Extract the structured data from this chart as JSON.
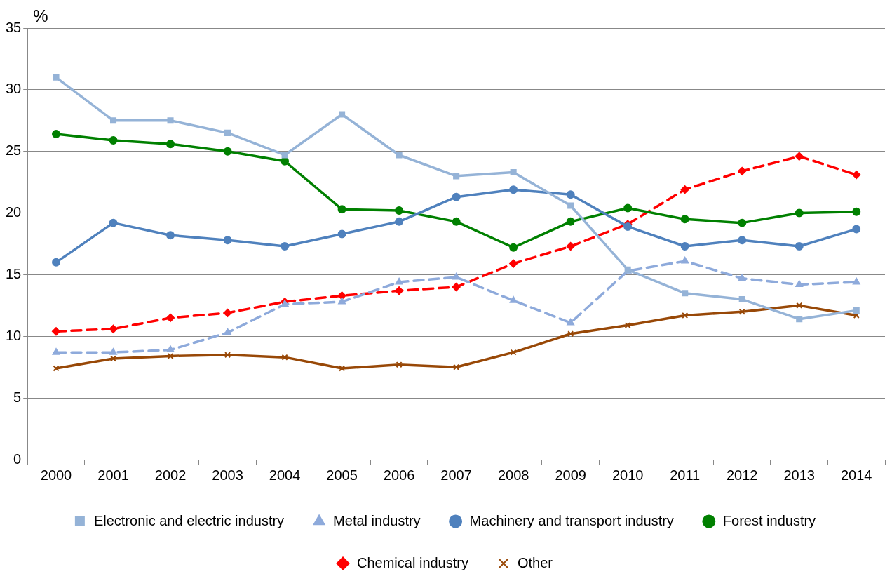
{
  "chart_data": {
    "type": "line",
    "ylabel": "%",
    "categories": [
      "2000",
      "2001",
      "2002",
      "2003",
      "2004",
      "2005",
      "2006",
      "2007",
      "2008",
      "2009",
      "2010",
      "2011",
      "2012",
      "2013",
      "2014"
    ],
    "ylim": [
      0,
      35
    ],
    "yticks": [
      0,
      5,
      10,
      15,
      20,
      25,
      30,
      35
    ],
    "grid": "y",
    "legend": "bottom",
    "series": [
      {
        "name": "Electronic and electric industry",
        "color": "#95b3d7",
        "marker": "square",
        "line_style": "solid",
        "values": [
          31,
          27.5,
          27.5,
          26.5,
          24.7,
          28,
          24.7,
          23,
          23.3,
          20.6,
          15.4,
          13.5,
          13,
          11.4,
          12.1
        ]
      },
      {
        "name": "Metal industry",
        "color": "#8eaadb",
        "marker": "triangle",
        "line_style": "dashed",
        "values": [
          8.7,
          8.7,
          8.9,
          10.3,
          12.6,
          12.8,
          14.4,
          14.8,
          12.9,
          11.1,
          15.3,
          16.1,
          14.7,
          14.2,
          14.4
        ]
      },
      {
        "name": "Machinery and transport industry",
        "color": "#4f81bd",
        "marker": "circle",
        "line_style": "solid",
        "values": [
          16,
          19.2,
          18.2,
          17.8,
          17.3,
          18.3,
          19.3,
          21.3,
          21.9,
          21.5,
          18.9,
          17.3,
          17.8,
          17.3,
          18.7
        ]
      },
      {
        "name": "Forest industry",
        "color": "#008000",
        "marker": "circle",
        "line_style": "solid",
        "values": [
          26.4,
          25.9,
          25.6,
          25,
          24.2,
          20.3,
          20.2,
          19.3,
          17.2,
          19.3,
          20.4,
          19.5,
          19.2,
          20,
          20.1
        ]
      },
      {
        "name": "Chemical industry",
        "color": "#ff0000",
        "marker": "diamond",
        "line_style": "dashed",
        "values": [
          10.4,
          10.6,
          11.5,
          11.9,
          12.8,
          13.3,
          13.7,
          14,
          15.9,
          17.3,
          19.1,
          21.9,
          23.4,
          24.6,
          23.1
        ]
      },
      {
        "name": "Other",
        "color": "#984807",
        "marker": "cross",
        "line_style": "solid",
        "values": [
          7.4,
          8.2,
          8.4,
          8.5,
          8.3,
          7.4,
          7.7,
          7.5,
          8.7,
          10.2,
          10.9,
          11.7,
          12,
          12.5,
          11.7
        ]
      }
    ]
  }
}
